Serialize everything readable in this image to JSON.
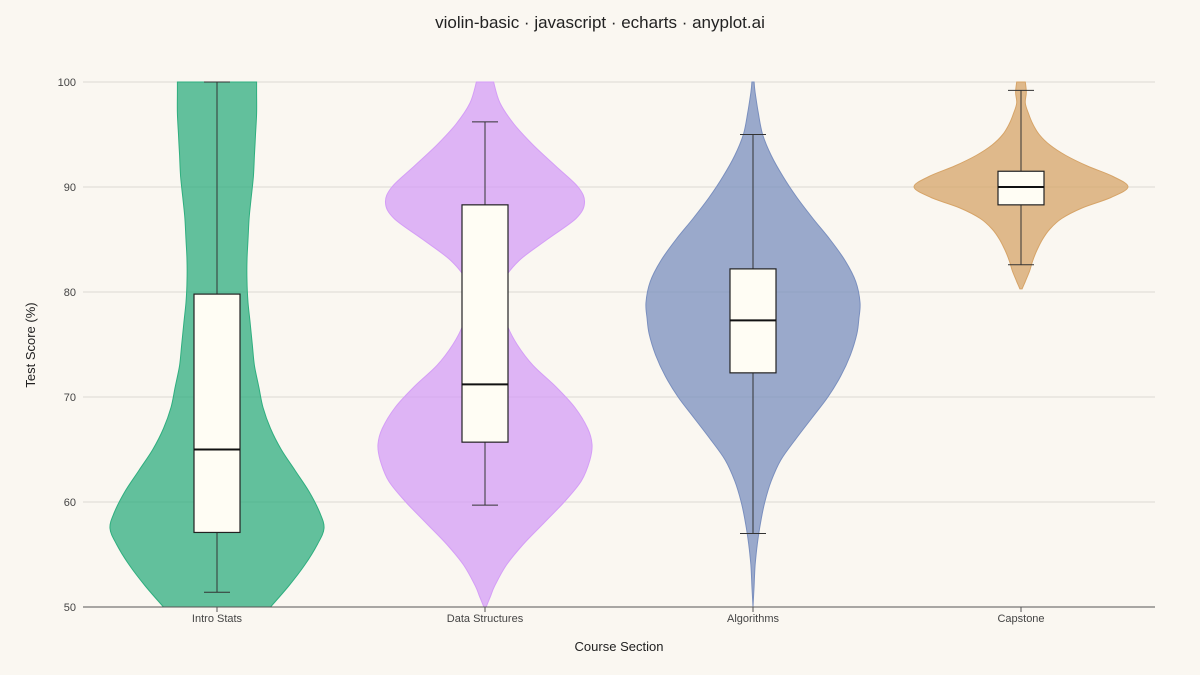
{
  "chart_data": {
    "type": "violin",
    "title": "violin-basic · javascript · echarts · anyplot.ai",
    "xlabel": "Course Section",
    "ylabel": "Test Score (%)",
    "ylim": [
      50,
      100
    ],
    "yticks": [
      50,
      60,
      70,
      80,
      90,
      100
    ],
    "grid": true,
    "categories": [
      "Intro Stats",
      "Data Structures",
      "Algorithms",
      "Capstone"
    ],
    "series": [
      {
        "color": "#2fae7f",
        "box": {
          "whisker_low": 51.4,
          "q1": 57.1,
          "median": 65.0,
          "q3": 79.8,
          "whisker_high": 100.0
        },
        "density": {
          "y": [
            50,
            52,
            54,
            56,
            57.5,
            59,
            61,
            63,
            65,
            67,
            69,
            71,
            73,
            75,
            77,
            79,
            81,
            83,
            85,
            87,
            89,
            91,
            93,
            95,
            97,
            99,
            100
          ],
          "w": [
            0.5,
            0.67,
            0.82,
            0.94,
            1.0,
            0.96,
            0.86,
            0.73,
            0.6,
            0.5,
            0.43,
            0.39,
            0.35,
            0.33,
            0.31,
            0.29,
            0.28,
            0.28,
            0.29,
            0.3,
            0.32,
            0.34,
            0.35,
            0.36,
            0.37,
            0.37,
            0.37
          ]
        }
      },
      {
        "color": "#d49ef6",
        "box": {
          "whisker_low": 59.7,
          "q1": 65.7,
          "median": 71.2,
          "q3": 88.3,
          "whisker_high": 96.2
        },
        "density": {
          "y": [
            50,
            51,
            52,
            54,
            56,
            58,
            60,
            62,
            64,
            65.5,
            67,
            69,
            71,
            73,
            75,
            77,
            79,
            81,
            83,
            85,
            87,
            88.5,
            90,
            92,
            94,
            96,
            98,
            100
          ],
          "w": [
            0.01,
            0.05,
            0.09,
            0.2,
            0.36,
            0.55,
            0.74,
            0.9,
            0.98,
            1.0,
            0.96,
            0.84,
            0.66,
            0.45,
            0.3,
            0.2,
            0.15,
            0.17,
            0.32,
            0.58,
            0.85,
            0.93,
            0.87,
            0.66,
            0.45,
            0.27,
            0.14,
            0.08
          ]
        }
      },
      {
        "color": "#7a8fbe",
        "box": {
          "whisker_low": 57.0,
          "q1": 72.3,
          "median": 77.3,
          "q3": 82.2,
          "whisker_high": 95.0
        },
        "density": {
          "y": [
            50,
            52,
            54,
            56,
            58,
            60,
            62,
            64,
            66,
            68,
            70,
            72,
            74,
            76,
            77.5,
            79,
            81,
            83,
            85,
            87,
            89,
            91,
            93,
            95,
            97,
            99,
            100
          ],
          "w": [
            0.0,
            0.01,
            0.02,
            0.04,
            0.07,
            0.11,
            0.17,
            0.26,
            0.4,
            0.55,
            0.7,
            0.82,
            0.91,
            0.97,
            0.99,
            1.0,
            0.96,
            0.86,
            0.72,
            0.56,
            0.41,
            0.28,
            0.17,
            0.09,
            0.05,
            0.02,
            0.01
          ]
        }
      },
      {
        "color": "#d6a468",
        "box": {
          "whisker_low": 82.6,
          "q1": 88.3,
          "median": 90.0,
          "q3": 91.5,
          "whisker_high": 99.2
        },
        "density": {
          "y": [
            80.3,
            81,
            82,
            83,
            84,
            85,
            86,
            87,
            88,
            89,
            90,
            91,
            92,
            93,
            94,
            95,
            96,
            97,
            98,
            99,
            100
          ],
          "w": [
            0.01,
            0.04,
            0.08,
            0.11,
            0.15,
            0.2,
            0.27,
            0.38,
            0.57,
            0.84,
            1.0,
            0.86,
            0.62,
            0.42,
            0.27,
            0.17,
            0.11,
            0.07,
            0.04,
            0.05,
            0.04
          ]
        }
      }
    ]
  }
}
